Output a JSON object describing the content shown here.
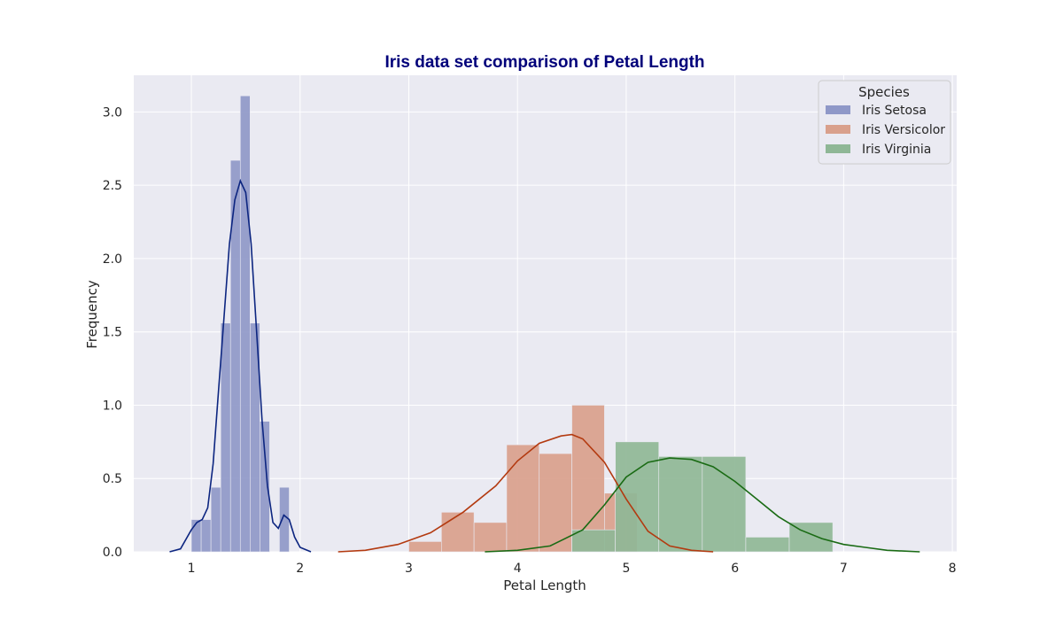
{
  "chart_data": {
    "type": "histogram",
    "title": "Iris data set comparison of Petal Length",
    "xlabel": "Petal Length",
    "ylabel": "Frequency",
    "xlim": [
      0.47,
      8.04
    ],
    "ylim": [
      0,
      3.25
    ],
    "xticks": [
      "1",
      "2",
      "3",
      "4",
      "5",
      "6",
      "7",
      "8"
    ],
    "yticks": [
      "0.0",
      "0.5",
      "1.0",
      "1.5",
      "2.0",
      "2.5",
      "3.0"
    ],
    "grid": true,
    "legend": {
      "title": "Species",
      "placement": "top-right"
    },
    "series": [
      {
        "name": "Iris Setosa",
        "color": "#8f98c8",
        "kde_color": "#0c2580",
        "bins": [
          {
            "x0": 1.0,
            "x1": 1.09,
            "y": 0.22
          },
          {
            "x0": 1.09,
            "x1": 1.18,
            "y": 0.22
          },
          {
            "x0": 1.18,
            "x1": 1.27,
            "y": 0.44
          },
          {
            "x0": 1.27,
            "x1": 1.36,
            "y": 1.56
          },
          {
            "x0": 1.36,
            "x1": 1.45,
            "y": 2.67
          },
          {
            "x0": 1.45,
            "x1": 1.54,
            "y": 3.11
          },
          {
            "x0": 1.54,
            "x1": 1.63,
            "y": 1.56
          },
          {
            "x0": 1.63,
            "x1": 1.72,
            "y": 0.89
          },
          {
            "x0": 1.72,
            "x1": 1.81,
            "y": 0.0
          },
          {
            "x0": 1.81,
            "x1": 1.9,
            "y": 0.44
          }
        ],
        "kde": [
          [
            0.8,
            0.0
          ],
          [
            0.9,
            0.02
          ],
          [
            1.0,
            0.15
          ],
          [
            1.05,
            0.2
          ],
          [
            1.1,
            0.22
          ],
          [
            1.15,
            0.3
          ],
          [
            1.2,
            0.6
          ],
          [
            1.25,
            1.1
          ],
          [
            1.3,
            1.6
          ],
          [
            1.35,
            2.1
          ],
          [
            1.4,
            2.4
          ],
          [
            1.45,
            2.53
          ],
          [
            1.5,
            2.45
          ],
          [
            1.55,
            2.1
          ],
          [
            1.6,
            1.5
          ],
          [
            1.65,
            0.9
          ],
          [
            1.7,
            0.45
          ],
          [
            1.75,
            0.2
          ],
          [
            1.8,
            0.16
          ],
          [
            1.85,
            0.25
          ],
          [
            1.9,
            0.22
          ],
          [
            1.95,
            0.1
          ],
          [
            2.0,
            0.03
          ],
          [
            2.1,
            0.0
          ]
        ]
      },
      {
        "name": "Iris Versicolor",
        "color": "#d9a08c",
        "kde_color": "#b33a10",
        "bins": [
          {
            "x0": 3.0,
            "x1": 3.3,
            "y": 0.07
          },
          {
            "x0": 3.3,
            "x1": 3.6,
            "y": 0.27
          },
          {
            "x0": 3.6,
            "x1": 3.9,
            "y": 0.2
          },
          {
            "x0": 3.9,
            "x1": 4.2,
            "y": 0.73
          },
          {
            "x0": 4.2,
            "x1": 4.5,
            "y": 0.67
          },
          {
            "x0": 4.5,
            "x1": 4.8,
            "y": 1.0
          },
          {
            "x0": 4.8,
            "x1": 5.1,
            "y": 0.4
          }
        ],
        "kde": [
          [
            2.35,
            0.0
          ],
          [
            2.6,
            0.01
          ],
          [
            2.9,
            0.05
          ],
          [
            3.2,
            0.13
          ],
          [
            3.5,
            0.27
          ],
          [
            3.8,
            0.45
          ],
          [
            4.0,
            0.62
          ],
          [
            4.2,
            0.74
          ],
          [
            4.4,
            0.79
          ],
          [
            4.5,
            0.8
          ],
          [
            4.6,
            0.77
          ],
          [
            4.8,
            0.61
          ],
          [
            5.0,
            0.36
          ],
          [
            5.2,
            0.14
          ],
          [
            5.4,
            0.04
          ],
          [
            5.6,
            0.01
          ],
          [
            5.8,
            0.0
          ]
        ]
      },
      {
        "name": "Iris Virginia",
        "color": "#8fb796",
        "kde_color": "#1a6b14",
        "bins": [
          {
            "x0": 4.5,
            "x1": 4.9,
            "y": 0.15
          },
          {
            "x0": 4.9,
            "x1": 5.3,
            "y": 0.75
          },
          {
            "x0": 5.3,
            "x1": 5.7,
            "y": 0.65
          },
          {
            "x0": 5.7,
            "x1": 6.1,
            "y": 0.65
          },
          {
            "x0": 6.1,
            "x1": 6.5,
            "y": 0.1
          },
          {
            "x0": 6.5,
            "x1": 6.9,
            "y": 0.2
          }
        ],
        "kde": [
          [
            3.7,
            0.0
          ],
          [
            4.0,
            0.01
          ],
          [
            4.3,
            0.04
          ],
          [
            4.6,
            0.15
          ],
          [
            4.8,
            0.32
          ],
          [
            5.0,
            0.51
          ],
          [
            5.2,
            0.61
          ],
          [
            5.4,
            0.64
          ],
          [
            5.6,
            0.63
          ],
          [
            5.8,
            0.58
          ],
          [
            6.0,
            0.48
          ],
          [
            6.2,
            0.36
          ],
          [
            6.4,
            0.24
          ],
          [
            6.6,
            0.15
          ],
          [
            6.8,
            0.09
          ],
          [
            7.0,
            0.05
          ],
          [
            7.2,
            0.03
          ],
          [
            7.4,
            0.01
          ],
          [
            7.7,
            0.0
          ]
        ]
      }
    ]
  }
}
